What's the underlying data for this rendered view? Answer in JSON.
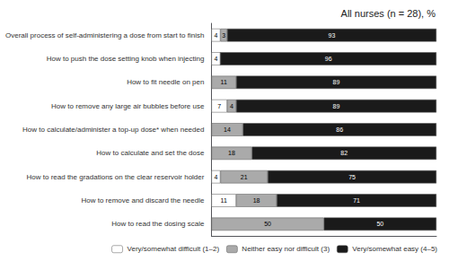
{
  "chart_data": {
    "type": "bar",
    "title": "All nurses (n = 28), %",
    "orientation": "horizontal",
    "stacked": true,
    "categories": [
      "How to read the dosing scale",
      "How to remove and discard the needle",
      "How to read the gradations on the clear reservoir holder",
      "How to calculate and set the dose",
      "How to calculate/administer a top-up dose* when needed",
      "How to remove any large air bubbles before use",
      "How to fit needle on pen",
      "How to push the dose setting knob when injecting",
      "Overall process of self-administering a dose from start to finish"
    ],
    "series": [
      {
        "name": "Very/somewhat difficult (1–2)",
        "color": "#ffffff",
        "values": [
          0,
          11,
          4,
          0,
          0,
          7,
          0,
          4,
          4
        ],
        "value_labels": [
          null,
          "11",
          "4",
          null,
          null,
          "7",
          null,
          "4",
          "4"
        ]
      },
      {
        "name": "Neither easy nor difficult (3)",
        "color": "#aaaaaa",
        "values": [
          50,
          18,
          21,
          18,
          14,
          4,
          11,
          0,
          3
        ],
        "value_labels": [
          "50",
          "18",
          "21",
          "18",
          "14",
          "4",
          "11",
          null,
          "3"
        ]
      },
      {
        "name": "Very/somewhat easy (4–5)",
        "color": "#1a1a1a",
        "values": [
          50,
          71,
          75,
          82,
          86,
          89,
          89,
          96,
          93
        ]
      }
    ],
    "xlim": [
      0,
      100
    ],
    "tick_labels": "y",
    "data_labels": true,
    "legend": "lower right",
    "grid": false
  }
}
